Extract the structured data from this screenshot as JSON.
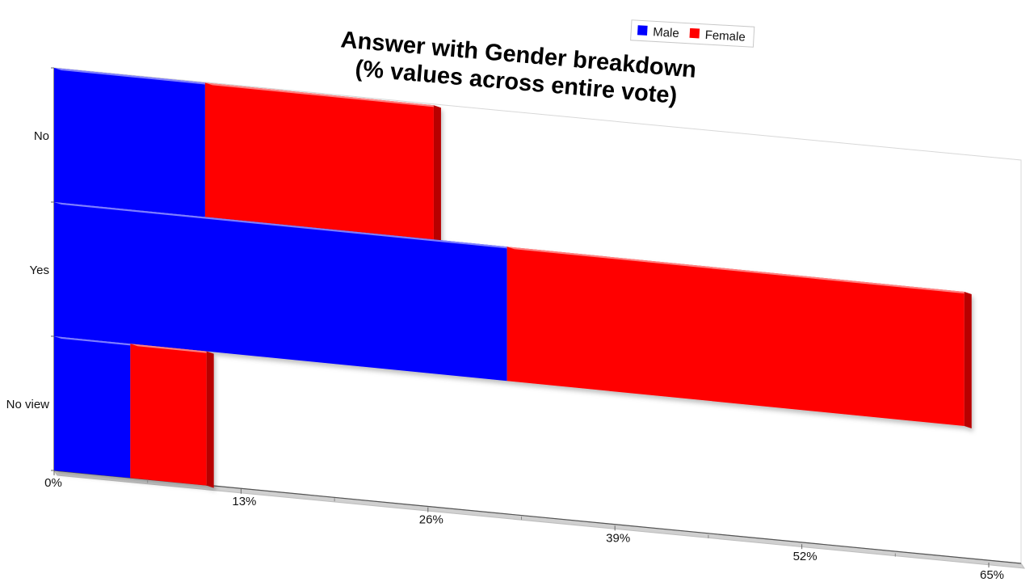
{
  "chart_data": {
    "type": "bar",
    "orientation": "horizontal",
    "stacked": true,
    "perspective_3d": true,
    "title": "Answer with Gender breakdown\n(% values across entire vote)",
    "categories": [
      "No",
      "Yes",
      "No view"
    ],
    "series": [
      {
        "name": "Male",
        "color": "#0000ff",
        "values": [
          10.5,
          31.5,
          5.3
        ]
      },
      {
        "name": "Female",
        "color": "#ff0000",
        "values": [
          15.9,
          31.8,
          5.3
        ]
      }
    ],
    "xlim": [
      0,
      65
    ],
    "x_tick_labels": [
      "0%",
      "13%",
      "26%",
      "39%",
      "52%",
      "65%"
    ],
    "grid": false,
    "legend_position": "top-right"
  }
}
